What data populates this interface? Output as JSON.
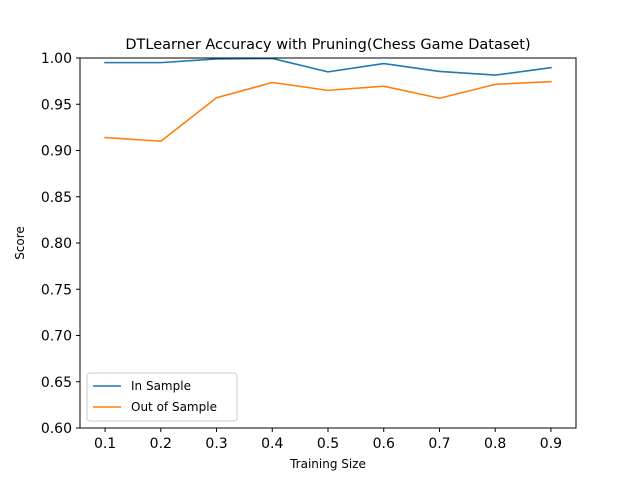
{
  "chart_data": {
    "type": "line",
    "title": "DTLearner Accuracy with Pruning(Chess Game Dataset)",
    "xlabel": "Training Size",
    "ylabel": "Score",
    "x": [
      0.1,
      0.2,
      0.3,
      0.4,
      0.5,
      0.6,
      0.7,
      0.8,
      0.9
    ],
    "xlim": [
      0.055,
      0.945
    ],
    "ylim": [
      0.6,
      1.0
    ],
    "xticks": [
      "0.1",
      "0.2",
      "0.3",
      "0.4",
      "0.5",
      "0.6",
      "0.7",
      "0.8",
      "0.9"
    ],
    "yticks": [
      "0.60",
      "0.65",
      "0.70",
      "0.75",
      "0.80",
      "0.85",
      "0.90",
      "0.95",
      "1.00"
    ],
    "grid": false,
    "legend": "lower-left",
    "series": [
      {
        "name": "In Sample",
        "color": "#1f77b4",
        "values": [
          0.995,
          0.995,
          0.999,
          0.9995,
          0.985,
          0.994,
          0.9855,
          0.9815,
          0.9895
        ]
      },
      {
        "name": "Out of Sample",
        "color": "#ff7f0e",
        "values": [
          0.914,
          0.91,
          0.957,
          0.9735,
          0.965,
          0.9695,
          0.9565,
          0.9715,
          0.9745
        ]
      }
    ]
  }
}
